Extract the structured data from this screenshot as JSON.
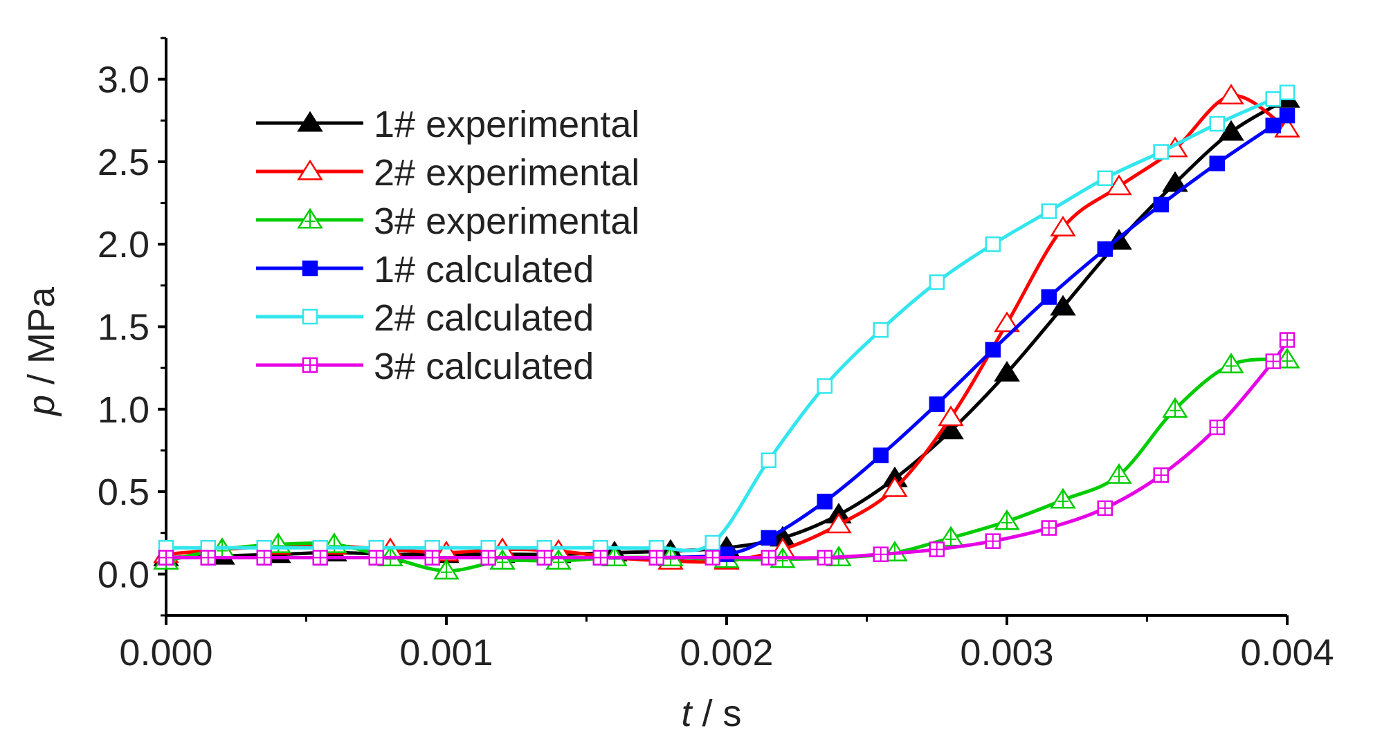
{
  "chart_data": {
    "type": "line",
    "xlabel": {
      "italic": "t",
      "rest": " / s"
    },
    "ylabel": {
      "italic": "p",
      "rest": " / MPa"
    },
    "xlim": [
      0,
      0.004
    ],
    "ylim": [
      -0.25,
      3.25
    ],
    "x_ticks": [
      0,
      0.001,
      0.002,
      0.003,
      0.004
    ],
    "x_tick_labels": [
      "0.000",
      "0.001",
      "0.002",
      "0.003",
      "0.004"
    ],
    "y_ticks": [
      0,
      0.5,
      1.0,
      1.5,
      2.0,
      2.5,
      3.0
    ],
    "y_tick_labels": [
      "0.0",
      "0.5",
      "1.0",
      "1.5",
      "2.0",
      "2.5",
      "3.0"
    ],
    "grid": false,
    "legend_position": "top-left",
    "series": [
      {
        "name": "1# experimental",
        "color": "#000000",
        "marker": "triangle-filled",
        "x": [
          0,
          0.0002,
          0.0004,
          0.0006,
          0.0008,
          0.001,
          0.0012,
          0.0014,
          0.0016,
          0.0018,
          0.002,
          0.0022,
          0.0024,
          0.0026,
          0.0028,
          0.003,
          0.0032,
          0.0034,
          0.0036,
          0.0038,
          0.004
        ],
        "y": [
          0.1,
          0.11,
          0.12,
          0.13,
          0.12,
          0.12,
          0.12,
          0.12,
          0.13,
          0.14,
          0.16,
          0.22,
          0.36,
          0.58,
          0.87,
          1.22,
          1.62,
          2.02,
          2.37,
          2.68,
          2.88
        ]
      },
      {
        "name": "2# experimental",
        "color": "#ff0000",
        "marker": "triangle-open",
        "x": [
          0,
          0.0002,
          0.0004,
          0.0006,
          0.0008,
          0.001,
          0.0012,
          0.0014,
          0.0016,
          0.0018,
          0.002,
          0.0022,
          0.0024,
          0.0026,
          0.0028,
          0.003,
          0.0032,
          0.0034,
          0.0036,
          0.0038,
          0.004
        ],
        "y": [
          0.12,
          0.15,
          0.17,
          0.17,
          0.15,
          0.13,
          0.15,
          0.14,
          0.1,
          0.08,
          0.08,
          0.15,
          0.3,
          0.52,
          0.95,
          1.52,
          2.1,
          2.35,
          2.58,
          2.9,
          2.7
        ]
      },
      {
        "name": "3# experimental",
        "color": "#00cc00",
        "marker": "triangle-open-cross",
        "x": [
          0,
          0.0002,
          0.0004,
          0.0006,
          0.0008,
          0.001,
          0.0012,
          0.0014,
          0.0016,
          0.0018,
          0.002,
          0.0022,
          0.0024,
          0.0026,
          0.0028,
          0.003,
          0.0032,
          0.0034,
          0.0036,
          0.0038,
          0.004
        ],
        "y": [
          0.08,
          0.15,
          0.18,
          0.18,
          0.1,
          0.02,
          0.08,
          0.08,
          0.1,
          0.1,
          0.09,
          0.09,
          0.1,
          0.13,
          0.22,
          0.32,
          0.45,
          0.6,
          1.0,
          1.27,
          1.3
        ]
      },
      {
        "name": "1# calculated",
        "color": "#0000ff",
        "marker": "square-filled",
        "x": [
          0,
          0.00015,
          0.00035,
          0.00055,
          0.00075,
          0.00095,
          0.00115,
          0.00135,
          0.00155,
          0.00175,
          0.002,
          0.00215,
          0.00235,
          0.00255,
          0.00275,
          0.00295,
          0.00315,
          0.00335,
          0.00355,
          0.00375,
          0.00395,
          0.004
        ],
        "y": [
          0.1,
          0.1,
          0.1,
          0.1,
          0.1,
          0.1,
          0.1,
          0.1,
          0.1,
          0.1,
          0.12,
          0.22,
          0.44,
          0.72,
          1.03,
          1.36,
          1.68,
          1.97,
          2.24,
          2.49,
          2.72,
          2.78
        ]
      },
      {
        "name": "2# calculated",
        "color": "#33e6ee",
        "marker": "square-open",
        "x": [
          0,
          0.00015,
          0.00035,
          0.00055,
          0.00075,
          0.00095,
          0.00115,
          0.00135,
          0.00155,
          0.00175,
          0.00195,
          0.00215,
          0.00235,
          0.00255,
          0.00275,
          0.00295,
          0.00315,
          0.00335,
          0.00355,
          0.00375,
          0.00395,
          0.004
        ],
        "y": [
          0.16,
          0.16,
          0.16,
          0.16,
          0.16,
          0.16,
          0.16,
          0.16,
          0.16,
          0.16,
          0.19,
          0.69,
          1.14,
          1.48,
          1.77,
          2.0,
          2.2,
          2.4,
          2.56,
          2.73,
          2.88,
          2.92
        ]
      },
      {
        "name": "3# calculated",
        "color": "#e600e6",
        "marker": "square-open-cross",
        "x": [
          0,
          0.00015,
          0.00035,
          0.00055,
          0.00075,
          0.00095,
          0.00115,
          0.00135,
          0.00155,
          0.00175,
          0.00195,
          0.00215,
          0.00235,
          0.00255,
          0.00275,
          0.00295,
          0.00315,
          0.00335,
          0.00355,
          0.00375,
          0.00395,
          0.004
        ],
        "y": [
          0.1,
          0.1,
          0.1,
          0.1,
          0.1,
          0.1,
          0.1,
          0.1,
          0.1,
          0.1,
          0.1,
          0.1,
          0.1,
          0.12,
          0.15,
          0.2,
          0.28,
          0.4,
          0.6,
          0.89,
          1.29,
          1.42
        ]
      }
    ]
  }
}
